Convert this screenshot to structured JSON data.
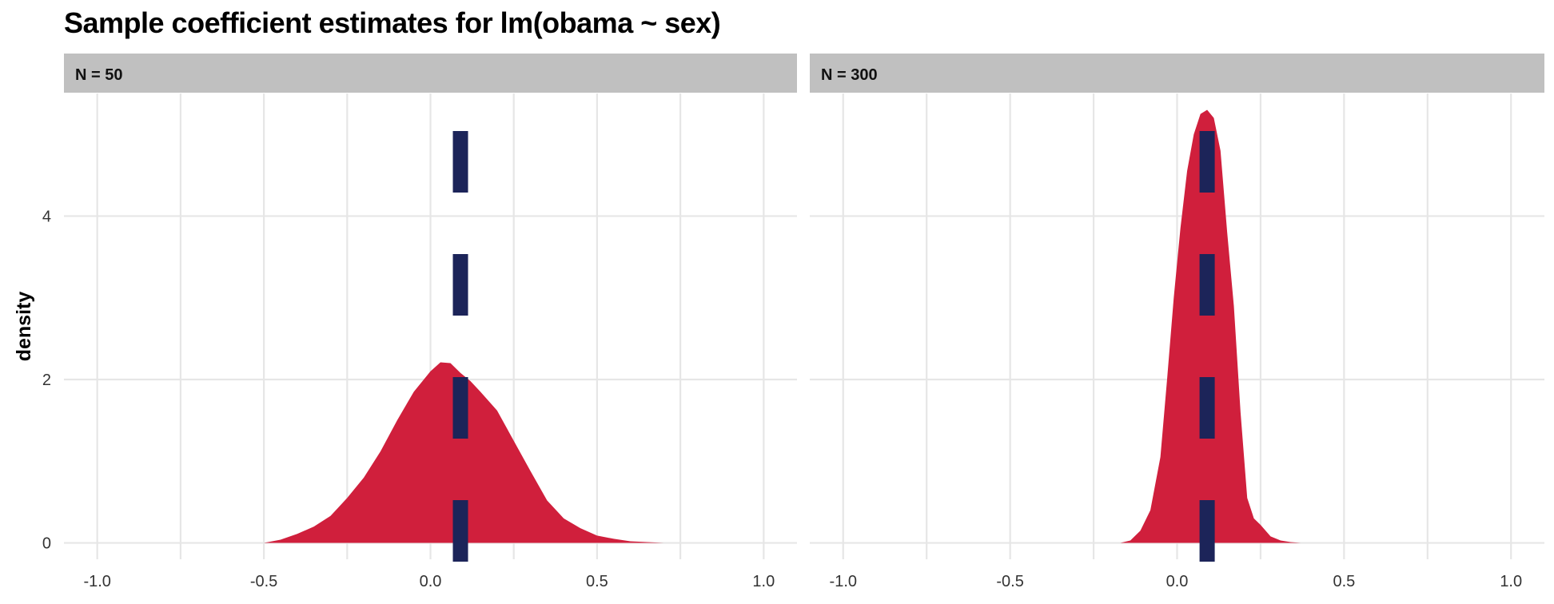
{
  "title": "Sample coefficient estimates for lm(obama ~ sex)",
  "colors": {
    "density_fill": "#D01F3C",
    "reference_line": "#1C2459",
    "strip_background": "#C0C0C0",
    "grid": "#E6E6E6"
  },
  "chart_data": {
    "type": "area",
    "title": "Sample coefficient estimates for lm(obama ~ sex)",
    "xlabel": "",
    "ylabel": "density",
    "xlim": [
      -1.1,
      1.1
    ],
    "ylim": [
      -0.2,
      5.5
    ],
    "x_ticks": [
      -1.0,
      -0.5,
      0.0,
      0.5,
      1.0
    ],
    "x_tick_labels": [
      "-1.0",
      "-0.5",
      "0.0",
      "0.5",
      "1.0"
    ],
    "y_ticks": [
      0,
      2,
      4
    ],
    "y_tick_labels": [
      "0",
      "2",
      "4"
    ],
    "grid": true,
    "reference_line": {
      "x": 0.09,
      "style": "dashed"
    },
    "panels": [
      {
        "label": "N = 50",
        "x": [
          -0.5,
          -0.45,
          -0.4,
          -0.35,
          -0.3,
          -0.25,
          -0.2,
          -0.15,
          -0.1,
          -0.05,
          0.0,
          0.03,
          0.06,
          0.09,
          0.12,
          0.15,
          0.2,
          0.25,
          0.3,
          0.35,
          0.4,
          0.45,
          0.5,
          0.55,
          0.6,
          0.65,
          0.7,
          0.73
        ],
        "density": [
          0.0,
          0.04,
          0.11,
          0.2,
          0.33,
          0.55,
          0.8,
          1.12,
          1.5,
          1.85,
          2.1,
          2.21,
          2.2,
          2.08,
          1.98,
          1.85,
          1.62,
          1.25,
          0.88,
          0.52,
          0.3,
          0.18,
          0.09,
          0.05,
          0.02,
          0.01,
          0.0,
          0.0
        ]
      },
      {
        "label": "N = 300",
        "x": [
          -0.17,
          -0.14,
          -0.11,
          -0.08,
          -0.05,
          -0.03,
          -0.01,
          0.01,
          0.03,
          0.05,
          0.07,
          0.09,
          0.11,
          0.13,
          0.15,
          0.17,
          0.19,
          0.21,
          0.23,
          0.25,
          0.28,
          0.31,
          0.34,
          0.37
        ],
        "density": [
          0.0,
          0.03,
          0.15,
          0.4,
          1.05,
          2.0,
          3.0,
          3.85,
          4.55,
          5.0,
          5.25,
          5.3,
          5.2,
          4.8,
          3.8,
          2.9,
          1.6,
          0.55,
          0.3,
          0.22,
          0.08,
          0.03,
          0.01,
          0.0
        ]
      }
    ]
  }
}
